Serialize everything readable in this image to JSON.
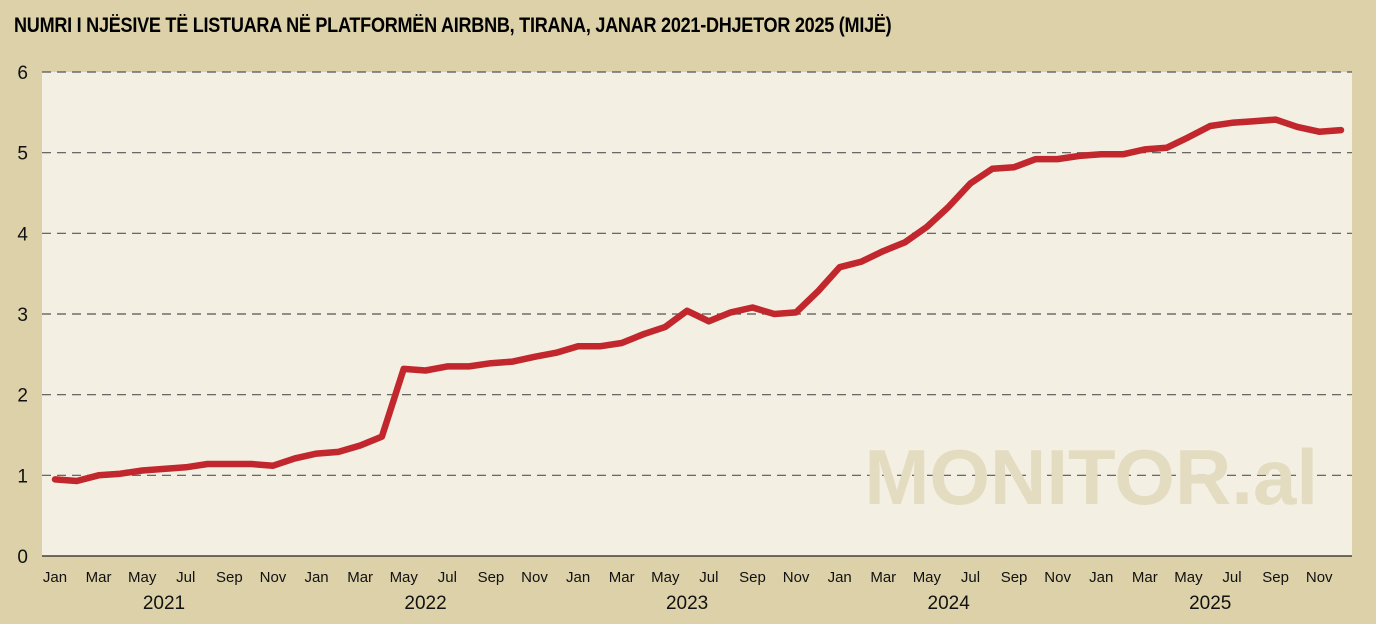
{
  "title": "NUMRI I NJËSIVE TË LISTUARA NË PLATFORMËN AIRBNB, TIRANA, JANAR 2021-DHJETOR 2025 (MIJË)",
  "watermark": "MONITOR.al",
  "colors": {
    "background": "#dcd1a8",
    "plot_bg": "#f3efe2",
    "line": "#c1272d",
    "grid": "#555555"
  },
  "chart_data": {
    "type": "line",
    "title": "NUMRI I NJËSIVE TË LISTUARA NË PLATFORMËN AIRBNB, TIRANA, JANAR 2021-DHJETOR 2025 (MIJË)",
    "xlabel": "",
    "ylabel": "",
    "ylim": [
      0,
      6
    ],
    "yticks": [
      0,
      1,
      2,
      3,
      4,
      5,
      6
    ],
    "grid": true,
    "legend": "none",
    "x_month_labels": [
      "Jan",
      "Mar",
      "May",
      "Jul",
      "Sep",
      "Nov",
      "Jan",
      "Mar",
      "May",
      "Jul",
      "Sep",
      "Nov",
      "Jan",
      "Mar",
      "May",
      "Jul",
      "Sep",
      "Nov",
      "Jan",
      "Mar",
      "May",
      "Jul",
      "Sep",
      "Nov",
      "Jan",
      "Mar",
      "May",
      "Jul",
      "Sep",
      "Nov"
    ],
    "x_year_labels": [
      "2021",
      "2022",
      "2023",
      "2024",
      "2025"
    ],
    "x": [
      "2021-01",
      "2021-02",
      "2021-03",
      "2021-04",
      "2021-05",
      "2021-06",
      "2021-07",
      "2021-08",
      "2021-09",
      "2021-10",
      "2021-11",
      "2021-12",
      "2022-01",
      "2022-02",
      "2022-03",
      "2022-04",
      "2022-05",
      "2022-06",
      "2022-07",
      "2022-08",
      "2022-09",
      "2022-10",
      "2022-11",
      "2022-12",
      "2023-01",
      "2023-02",
      "2023-03",
      "2023-04",
      "2023-05",
      "2023-06",
      "2023-07",
      "2023-08",
      "2023-09",
      "2023-10",
      "2023-11",
      "2023-12",
      "2024-01",
      "2024-02",
      "2024-03",
      "2024-04",
      "2024-05",
      "2024-06",
      "2024-07",
      "2024-08",
      "2024-09",
      "2024-10",
      "2024-11",
      "2024-12",
      "2025-01",
      "2025-02",
      "2025-03",
      "2025-04",
      "2025-05",
      "2025-06",
      "2025-07",
      "2025-08",
      "2025-09",
      "2025-10",
      "2025-11",
      "2025-12"
    ],
    "series": [
      {
        "values": [
          0.95,
          0.93,
          1.0,
          1.02,
          1.06,
          1.08,
          1.1,
          1.14,
          1.14,
          1.14,
          1.12,
          1.21,
          1.27,
          1.29,
          1.37,
          1.48,
          2.32,
          2.3,
          2.35,
          2.35,
          2.39,
          2.41,
          2.47,
          2.52,
          2.6,
          2.6,
          2.64,
          2.75,
          2.84,
          3.04,
          2.91,
          3.02,
          3.08,
          3.0,
          3.02,
          3.28,
          3.58,
          3.65,
          3.78,
          3.89,
          4.08,
          4.33,
          4.62,
          4.8,
          4.82,
          4.92,
          4.92,
          4.96,
          4.98,
          4.98,
          5.04,
          5.06,
          5.19,
          5.33,
          5.37,
          5.39,
          5.41,
          5.32,
          5.26,
          5.28
        ]
      }
    ]
  }
}
